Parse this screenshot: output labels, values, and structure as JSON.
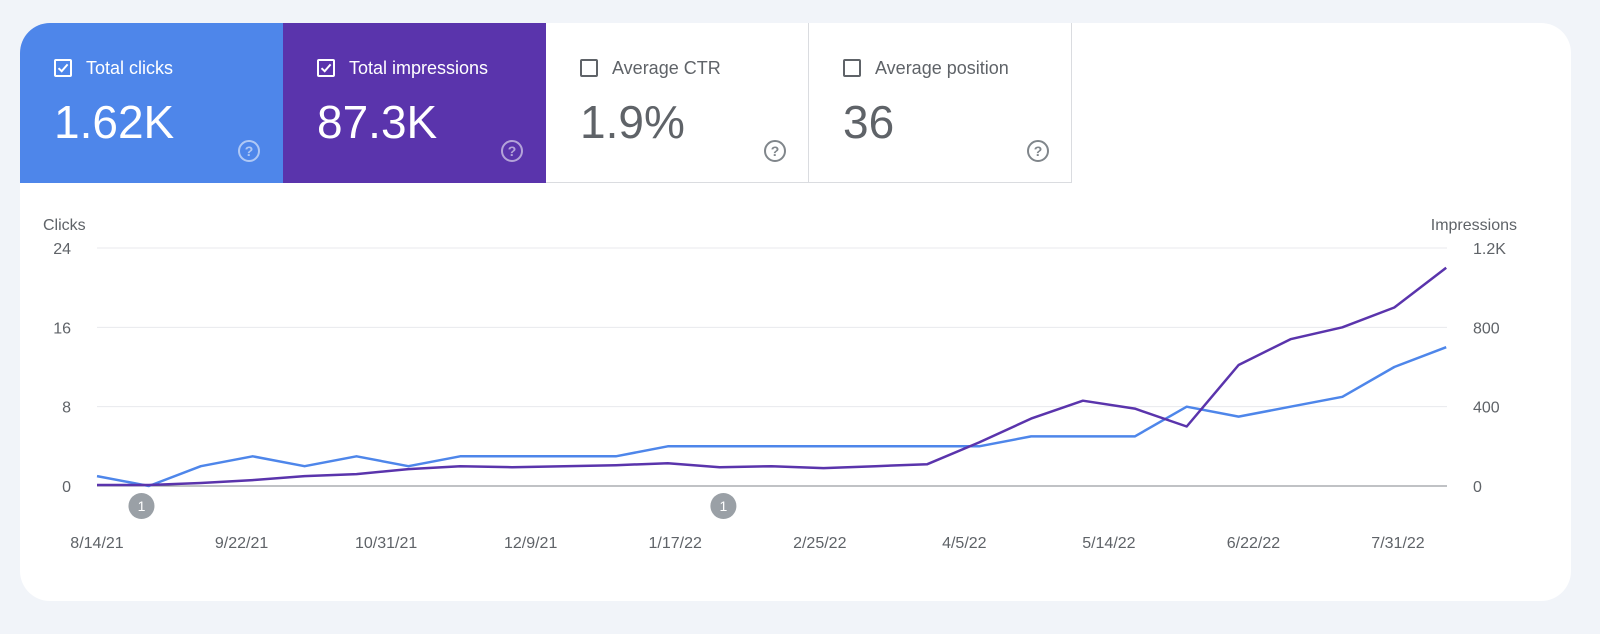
{
  "metrics": {
    "clicks": {
      "label": "Total clicks",
      "value": "1.62K",
      "checked": true,
      "color": "#4e86ea"
    },
    "impressions": {
      "label": "Total impressions",
      "value": "87.3K",
      "checked": true,
      "color": "#5a34ac"
    },
    "ctr": {
      "label": "Average CTR",
      "value": "1.9%",
      "checked": false
    },
    "position": {
      "label": "Average position",
      "value": "36",
      "checked": false
    },
    "help_glyph": "?"
  },
  "chart_data": {
    "type": "line",
    "left_axis_label": "Clicks",
    "right_axis_label": "Impressions",
    "left_ticks": [
      "0",
      "8",
      "16",
      "24"
    ],
    "right_ticks": [
      "0",
      "400",
      "800",
      "1.2K"
    ],
    "ylim_left": [
      0,
      24
    ],
    "ylim_right": [
      0,
      1200
    ],
    "x_ticks": [
      "8/14/21",
      "9/22/21",
      "10/31/21",
      "12/9/21",
      "1/17/22",
      "2/25/22",
      "4/5/22",
      "5/14/22",
      "6/22/22",
      "7/31/22"
    ],
    "annotations": [
      {
        "label": "1",
        "date": "8/26/21"
      },
      {
        "label": "1",
        "date": "1/30/22"
      }
    ],
    "grid": true,
    "series": [
      {
        "name": "Total clicks",
        "axis": "left",
        "color": "#4e86ea",
        "x": [
          "8/14/21",
          "8/28/21",
          "9/11/21",
          "9/25/21",
          "10/9/21",
          "10/23/21",
          "11/6/21",
          "11/20/21",
          "12/4/21",
          "12/18/21",
          "1/1/22",
          "1/15/22",
          "1/29/22",
          "2/12/22",
          "2/26/22",
          "3/12/22",
          "3/26/22",
          "4/9/22",
          "4/23/22",
          "5/7/22",
          "5/21/22",
          "6/4/22",
          "6/18/22",
          "7/2/22",
          "7/16/22",
          "7/30/22",
          "8/13/22"
        ],
        "values": [
          1,
          0,
          2,
          3,
          2,
          3,
          2,
          3,
          3,
          3,
          3,
          4,
          4,
          4,
          4,
          4,
          4,
          4,
          5,
          5,
          5,
          8,
          7,
          8,
          9,
          12,
          14
        ]
      },
      {
        "name": "Total impressions",
        "axis": "right",
        "color": "#5a34ac",
        "x": [
          "8/14/21",
          "8/28/21",
          "9/11/21",
          "9/25/21",
          "10/9/21",
          "10/23/21",
          "11/6/21",
          "11/20/21",
          "12/4/21",
          "12/18/21",
          "1/1/22",
          "1/15/22",
          "1/29/22",
          "2/12/22",
          "2/26/22",
          "3/12/22",
          "3/26/22",
          "4/9/22",
          "4/23/22",
          "5/7/22",
          "5/21/22",
          "6/4/22",
          "6/18/22",
          "7/2/22",
          "7/16/22",
          "7/30/22",
          "8/13/22"
        ],
        "values": [
          5,
          5,
          15,
          30,
          50,
          60,
          85,
          100,
          95,
          100,
          105,
          115,
          95,
          100,
          90,
          100,
          110,
          220,
          340,
          430,
          390,
          300,
          610,
          740,
          800,
          900,
          1100
        ]
      }
    ]
  }
}
